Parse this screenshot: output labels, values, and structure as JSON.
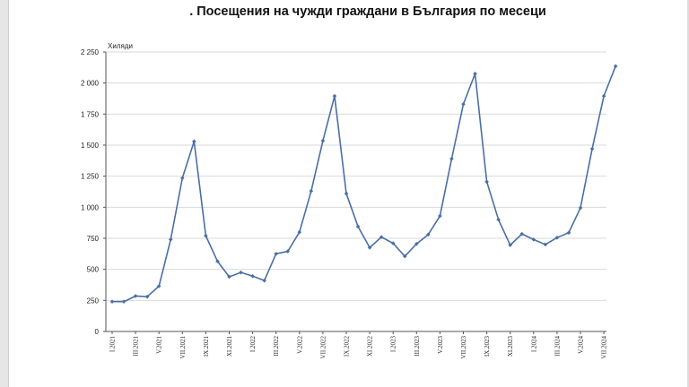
{
  "chart_data": {
    "type": "line",
    "title": ". Посещения на чужди граждани в България по месеци",
    "ylabel": "Хиляди",
    "xlabel": "",
    "ylim": [
      0,
      2250
    ],
    "yticks": [
      0,
      250,
      500,
      750,
      1000,
      1250,
      1500,
      1750,
      2000,
      2250
    ],
    "ytick_labels": [
      "0",
      "250",
      "500",
      "750",
      "1 000",
      "1 250",
      "1 500",
      "1 750",
      "2 000",
      "2 250"
    ],
    "grid": true,
    "legend": "none",
    "line_color": "#4a6fa5",
    "x": [
      "I.2021",
      "II.2021",
      "III.2021",
      "IV.2021",
      "V.2021",
      "VI.2021",
      "VII.2021",
      "VIII.2021",
      "IX.2021",
      "X.2021",
      "XI.2021",
      "XII.2021",
      "I.2022",
      "II.2022",
      "III.2022",
      "IV.2022",
      "V.2022",
      "VI.2022",
      "VII.2022",
      "VIII.2022",
      "IX.2022",
      "X.2022",
      "XI.2022",
      "XII.2022",
      "I.2023",
      "II.2023",
      "III.2023",
      "IV.2023",
      "V.2023",
      "VI.2023",
      "VII.2023",
      "VIII.2023",
      "IX.2023",
      "X.2023",
      "XI.2023",
      "XII.2023",
      "I.2024",
      "II.2024",
      "III.2024",
      "IV.2024",
      "V.2024",
      "VI.2024",
      "VII.2024",
      "VIII.2024"
    ],
    "x_tick_labels": [
      "I.2021",
      "III.2021",
      "V.2021",
      "VII.2021",
      "IX.2021",
      "XI.2021",
      "I.2022",
      "III.2022",
      "V.2022",
      "VII.2022",
      "IX.2022",
      "XI.2022",
      "I.2023",
      "III.2023",
      "V.2023",
      "VII.2023",
      "IX.2023",
      "XI.2023",
      "I.2024",
      "III.2024",
      "V.2024",
      "VII.2024"
    ],
    "values": [
      240,
      240,
      285,
      280,
      365,
      740,
      1235,
      1530,
      770,
      565,
      440,
      475,
      445,
      410,
      625,
      645,
      800,
      1130,
      1535,
      1895,
      1110,
      845,
      675,
      760,
      710,
      605,
      705,
      780,
      930,
      1390,
      1830,
      2075,
      1205,
      900,
      695,
      785,
      740,
      700,
      755,
      795,
      995,
      1470,
      1895,
      2135
    ]
  }
}
